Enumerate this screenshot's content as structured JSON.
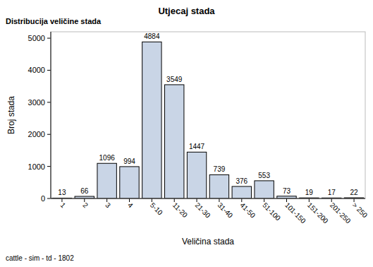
{
  "chart_data": {
    "type": "bar",
    "title": "Utjecaj stada",
    "subtitle": "Distribucija veličine stada",
    "x_label": "Veličina stada",
    "y_label": "Broj stada",
    "footer": "cattle - sim - td - 1802",
    "categories": [
      "1",
      "2",
      "3",
      "4",
      "5-10",
      "11-20",
      "21-30",
      "31-40",
      "41-50",
      "51-100",
      "101-150",
      "151-200",
      "201-250",
      "> 250"
    ],
    "values": [
      13,
      66,
      1096,
      994,
      4884,
      3549,
      1447,
      739,
      376,
      553,
      73,
      19,
      17,
      22
    ],
    "color": "#c9d5e6",
    "ylim": [
      0,
      5200
    ],
    "yticks": [
      0,
      1000,
      2000,
      3000,
      4000,
      5000
    ],
    "grid": false,
    "data_labels": true
  }
}
